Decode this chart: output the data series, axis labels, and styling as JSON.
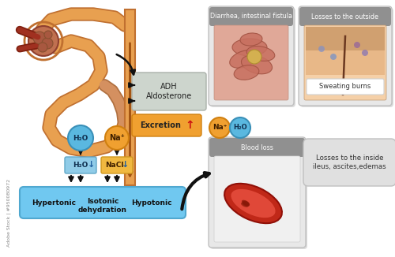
{
  "bg_color": "#ffffff",
  "left_panel": {
    "nephron_color": "#e8a050",
    "nephron_edge": "#c07030",
    "glom_color": "#c07050",
    "glom_edge": "#904030",
    "tube_color": "#e8a050",
    "tube_edge": "#c07030",
    "artery_color": "#a03020",
    "artery_edge": "#802010",
    "adh_box_color": "#cdd5cd",
    "adh_box_edge": "#aab0aa",
    "excretion_box_color": "#f0a030",
    "excretion_box_edge": "#d08010",
    "adh_text": "ADH\nAldosterone",
    "excretion_text": "Excretion",
    "water_circle_color": "#5ab8e0",
    "water_circle_edge": "#3a90b8",
    "na_circle_color": "#f0a030",
    "na_circle_edge": "#d08010",
    "water_box_color": "#90cce8",
    "water_box_edge": "#60a8c8",
    "nacl_box_color": "#f0b840",
    "nacl_box_edge": "#d09820",
    "bottom_bar_color": "#70c8f0",
    "bottom_bar_edge": "#50a8d0",
    "arrow_color": "#111111",
    "up_arrow_color": "#cc2020"
  },
  "right_panel": {
    "card_shadow": "#bbbbbb",
    "card_bg": "#e8e8e8",
    "card_title_bg": "#909090",
    "card_title_color": "#ffffff",
    "intestine_bg": "#e0a898",
    "intestine_loop": "#c87060",
    "intestine_loop_edge": "#a05040",
    "intestine_yellow": "#d4b050",
    "skin_top": "#f5d0a8",
    "skin_mid": "#e8b888",
    "skin_bot": "#d0a070",
    "hair_color": "#6a3820",
    "sweat_box_color": "#ffffff",
    "blood_bg": "#f0f0f0",
    "rbc_outer": "#c02818",
    "rbc_inner": "#e04838",
    "rbc_detail": "#881808",
    "na_circle_color": "#f0a030",
    "na_circle_edge": "#d08010",
    "h2o_circle_color": "#5ab8e0",
    "h2o_circle_edge": "#3a90b8",
    "losses_box_color": "#e0e0e0",
    "losses_box_edge": "#c0c0c0",
    "diarrhea_title": "Diarrhea, intestinal fistula",
    "losses_outside_title": "Losses to the outside",
    "blood_loss_title": "Blood loss",
    "sweating_label": "Sweating burns",
    "losses_inside_text": "Losses to the inside\nileus, ascites,edemas"
  }
}
